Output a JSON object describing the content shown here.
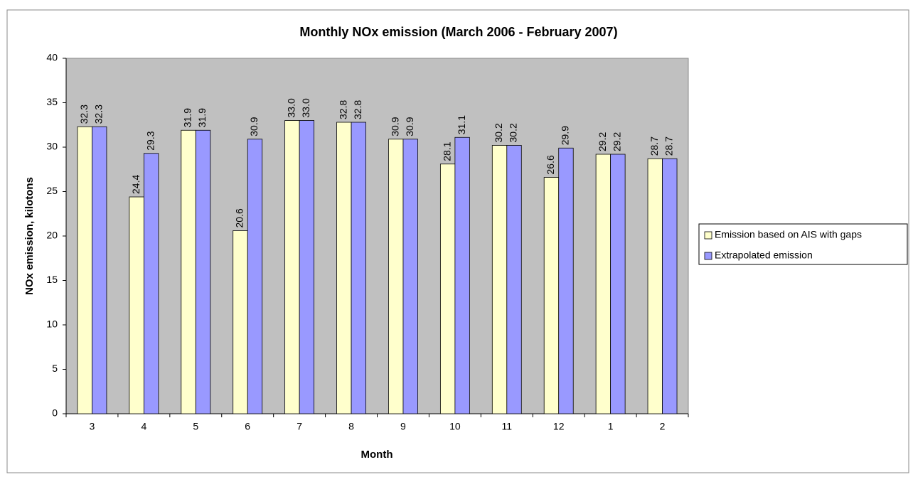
{
  "chart_data": {
    "type": "bar",
    "title": "Monthly NOx emission (March 2006 - February 2007)",
    "x_label": "Month",
    "y_label": "NOx emission, kilotons",
    "categories": [
      "3",
      "4",
      "5",
      "6",
      "7",
      "8",
      "9",
      "10",
      "11",
      "12",
      "1",
      "2"
    ],
    "series": [
      {
        "name": "Emission based on AIS with gaps",
        "color": "#ffffcc",
        "values": [
          32.3,
          24.4,
          31.9,
          20.6,
          33.0,
          32.8,
          30.9,
          28.1,
          30.2,
          26.6,
          29.2,
          28.7
        ],
        "value_labels": [
          "32.3",
          "24.4",
          "31.9",
          "20.6",
          "33.0",
          "32.8",
          "30.9",
          "28.1",
          "30.2",
          "26.6",
          "29.2",
          "28.7"
        ]
      },
      {
        "name": "Extrapolated emission",
        "color": "#9999ff",
        "values": [
          32.3,
          29.3,
          31.9,
          30.9,
          33.0,
          32.8,
          30.9,
          31.1,
          30.2,
          29.9,
          29.2,
          28.7
        ],
        "value_labels": [
          "32.3",
          "29.3",
          "31.9",
          "30.9",
          "33.0",
          "32.8",
          "30.9",
          "31.1",
          "30.2",
          "29.9",
          "29.2",
          "28.7"
        ]
      }
    ],
    "ylim": [
      0,
      40
    ],
    "yticks": [
      0,
      5,
      10,
      15,
      20,
      25,
      30,
      35,
      40
    ],
    "grid": false,
    "legend": "right",
    "plot_background": "#c0c0c0"
  }
}
